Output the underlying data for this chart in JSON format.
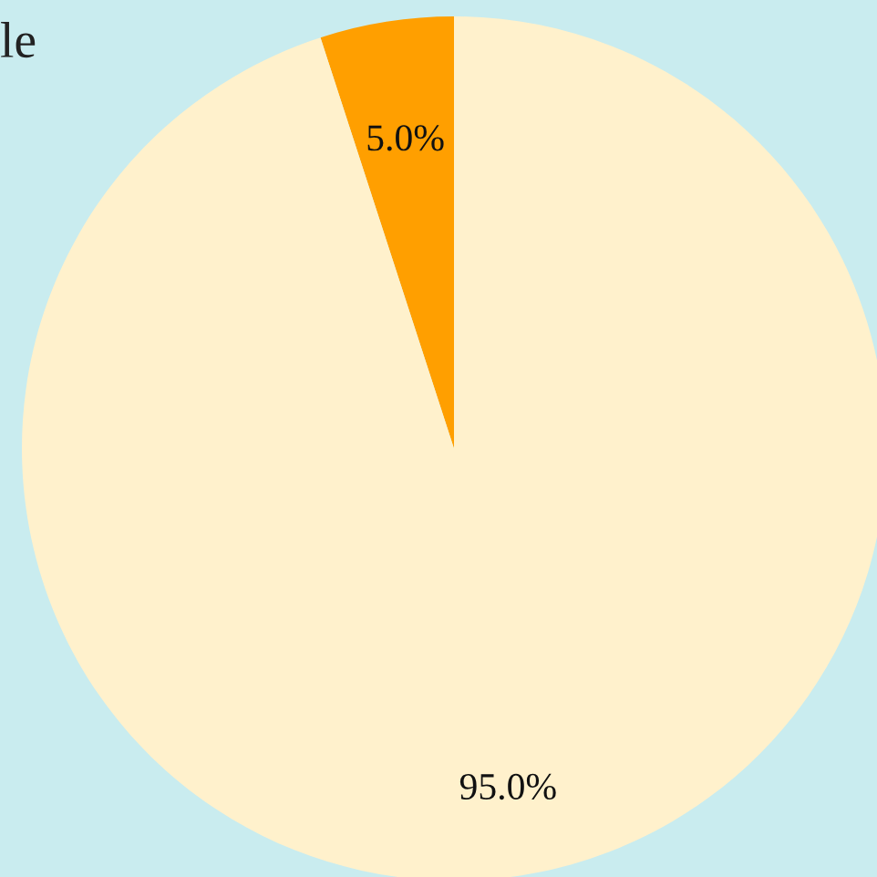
{
  "chart_data": {
    "type": "pie",
    "title": "le",
    "categories": [
      null,
      null
    ],
    "values": [
      5.0,
      95.0
    ],
    "colors": [
      "#ff9f00",
      "#fff1cc"
    ],
    "value_labels": [
      "5.0%",
      "95.0%"
    ]
  }
}
